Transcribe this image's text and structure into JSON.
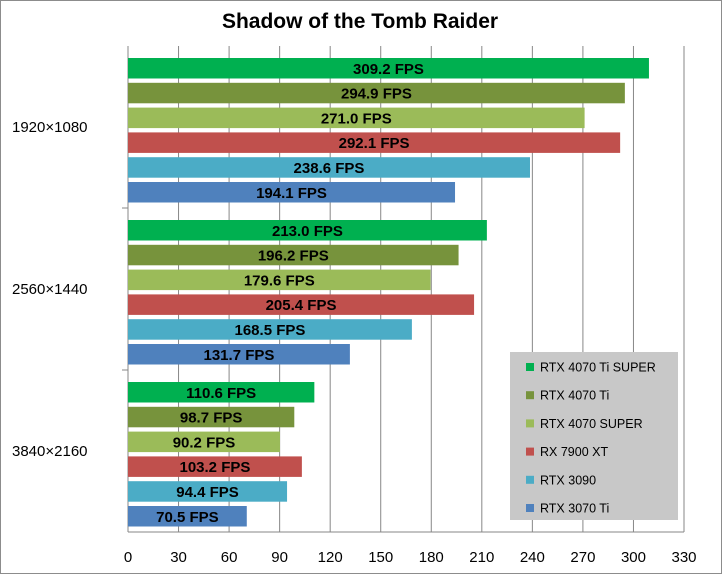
{
  "chart_data": {
    "type": "bar",
    "orientation": "horizontal",
    "title": "Shadow of the Tomb Raider",
    "categories": [
      "1920×1080",
      "2560×1440",
      "3840×2160"
    ],
    "series": [
      {
        "name": "RTX 4070 Ti SUPER",
        "color": "#00b050",
        "values": [
          309.2,
          213.0,
          110.6
        ],
        "labels": [
          "309.2 FPS",
          "213.0 FPS",
          "110.6 FPS"
        ]
      },
      {
        "name": "RTX 4070 Ti",
        "color": "#77933c",
        "values": [
          294.9,
          196.2,
          98.7
        ],
        "labels": [
          "294.9 FPS",
          "196.2 FPS",
          "98.7 FPS"
        ]
      },
      {
        "name": "RTX 4070 SUPER",
        "color": "#9bbb59",
        "values": [
          271.0,
          179.6,
          90.2
        ],
        "labels": [
          "271.0 FPS",
          "179.6 FPS",
          "90.2 FPS"
        ]
      },
      {
        "name": "RX 7900 XT",
        "color": "#c0504d",
        "values": [
          292.1,
          205.4,
          103.2
        ],
        "labels": [
          "292.1 FPS",
          "205.4 FPS",
          "103.2 FPS"
        ]
      },
      {
        "name": "RTX 3090",
        "color": "#4bacc6",
        "values": [
          238.6,
          168.5,
          94.4
        ],
        "labels": [
          "238.6 FPS",
          "168.5 FPS",
          "94.4 FPS"
        ]
      },
      {
        "name": "RTX 3070 Ti",
        "color": "#4f81bd",
        "values": [
          194.1,
          131.7,
          70.5
        ],
        "labels": [
          "194.1 FPS",
          "131.7 FPS",
          "70.5 FPS"
        ]
      }
    ],
    "xlim": [
      0,
      330
    ],
    "xticks": [
      0,
      30,
      60,
      90,
      120,
      150,
      180,
      210,
      240,
      270,
      300,
      330
    ],
    "grid": "vertical",
    "legend": "bottom-right",
    "legend_background": "#c8c8c8"
  }
}
